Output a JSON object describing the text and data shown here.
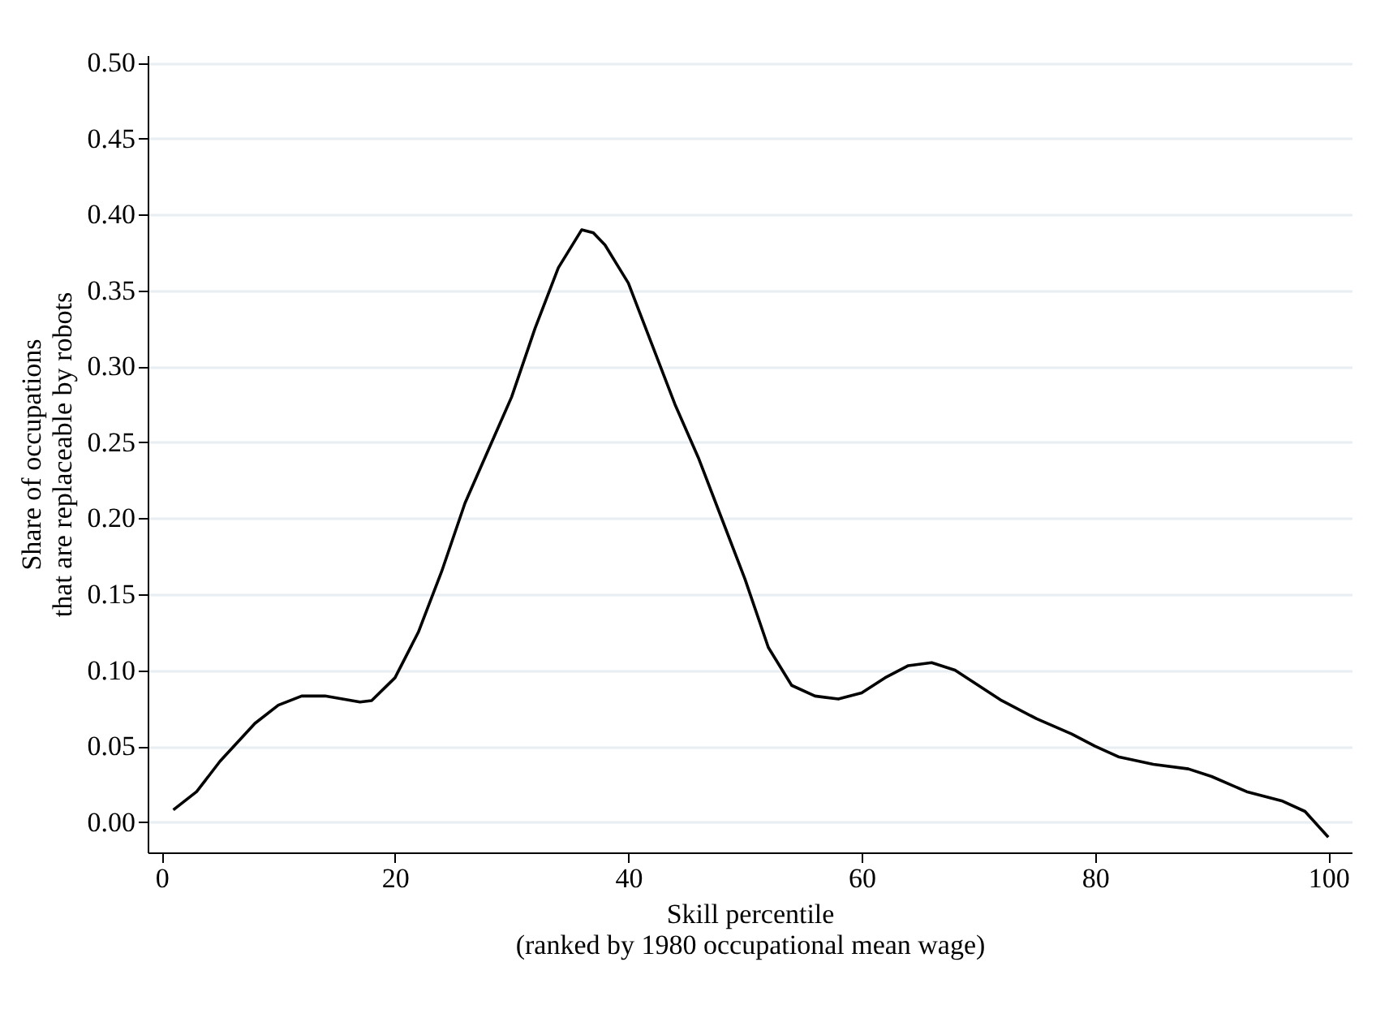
{
  "chart_data": {
    "type": "line",
    "xlabel": "Skill percentile\n(ranked by 1980 occupational mean wage)",
    "ylabel": "Share of  occupations\nthat are replaceable by robots",
    "x": [
      1,
      3,
      5,
      8,
      10,
      12,
      14,
      17,
      18,
      20,
      22,
      24,
      26,
      28,
      30,
      32,
      34,
      36,
      37,
      38,
      40,
      42,
      44,
      46,
      48,
      50,
      52,
      54,
      56,
      58,
      60,
      62,
      64,
      66,
      68,
      70,
      72,
      75,
      78,
      80,
      82,
      85,
      88,
      90,
      93,
      96,
      98,
      100
    ],
    "series": [
      {
        "color": "#000000",
        "values": [
          0.008,
          0.02,
          0.04,
          0.065,
          0.077,
          0.083,
          0.083,
          0.079,
          0.08,
          0.095,
          0.125,
          0.165,
          0.21,
          0.245,
          0.28,
          0.325,
          0.365,
          0.39,
          0.388,
          0.38,
          0.355,
          0.315,
          0.275,
          0.24,
          0.2,
          0.16,
          0.115,
          0.09,
          0.083,
          0.081,
          0.085,
          0.095,
          0.103,
          0.105,
          0.1,
          0.09,
          0.08,
          0.068,
          0.058,
          0.05,
          0.043,
          0.038,
          0.035,
          0.03,
          0.02,
          0.014,
          0.007,
          -0.01
        ]
      }
    ],
    "xlim": [
      -1.2,
      102
    ],
    "ylim": [
      -0.02,
      0.505
    ],
    "xticks": [
      0,
      20,
      40,
      60,
      80,
      100
    ],
    "yticks": [
      {
        "value": 0,
        "label": "0.00"
      },
      {
        "value": 0.05,
        "label": "0.05"
      },
      {
        "value": 0.1,
        "label": "0.10"
      },
      {
        "value": 0.15,
        "label": "0.15"
      },
      {
        "value": 0.2,
        "label": "0.20"
      },
      {
        "value": 0.25,
        "label": "0.25"
      },
      {
        "value": 0.3,
        "label": "0.30"
      },
      {
        "value": 0.35,
        "label": "0.35"
      },
      {
        "value": 0.4,
        "label": "0.40"
      },
      {
        "value": 0.45,
        "label": "0.45"
      },
      {
        "value": 0.5,
        "label": "0.50"
      }
    ],
    "grid": "y",
    "line_style": "solid",
    "marker": "none"
  }
}
